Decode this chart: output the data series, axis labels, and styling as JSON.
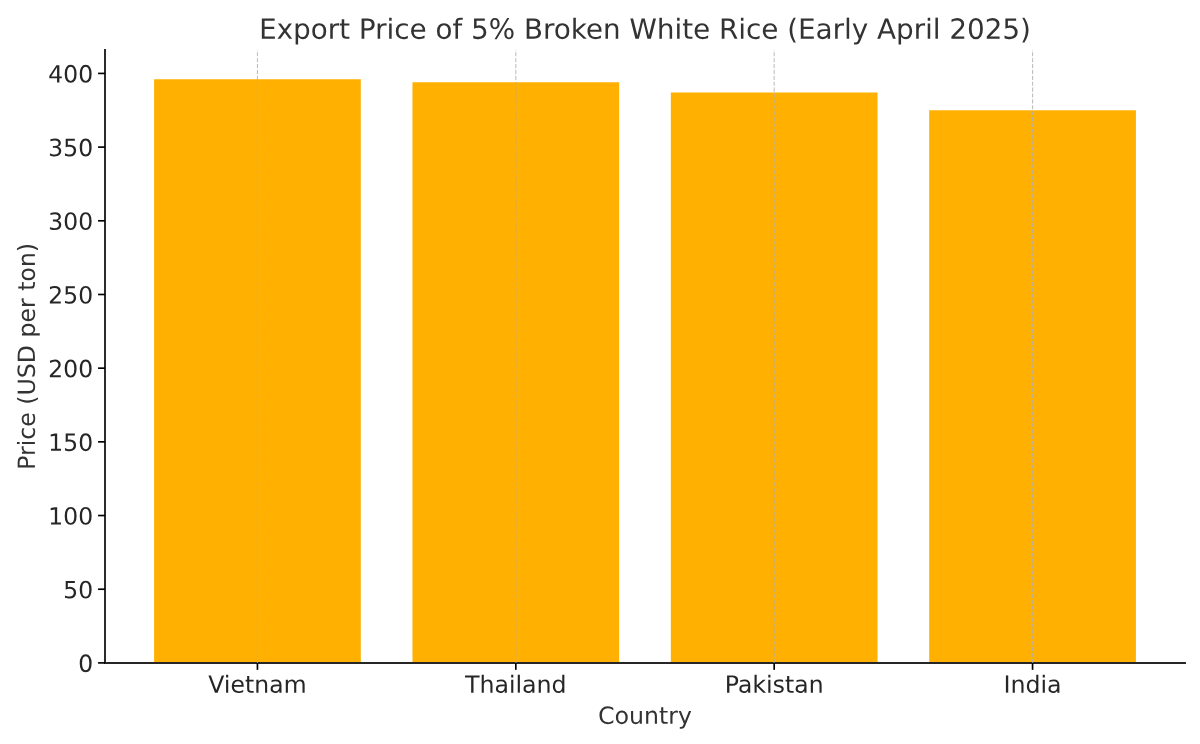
{
  "chart_data": {
    "type": "bar",
    "title": "Export Price of 5% Broken White Rice (Early April 2025)",
    "xlabel": "Country",
    "ylabel": "Price (USD per ton)",
    "categories": [
      "Vietnam",
      "Thailand",
      "Pakistan",
      "India"
    ],
    "values": [
      396,
      394,
      387,
      375
    ],
    "color": "#ffb000",
    "ylim": [
      0,
      416
    ],
    "yticks": [
      0,
      50,
      100,
      150,
      200,
      250,
      300,
      350,
      400
    ],
    "grid": "x"
  }
}
